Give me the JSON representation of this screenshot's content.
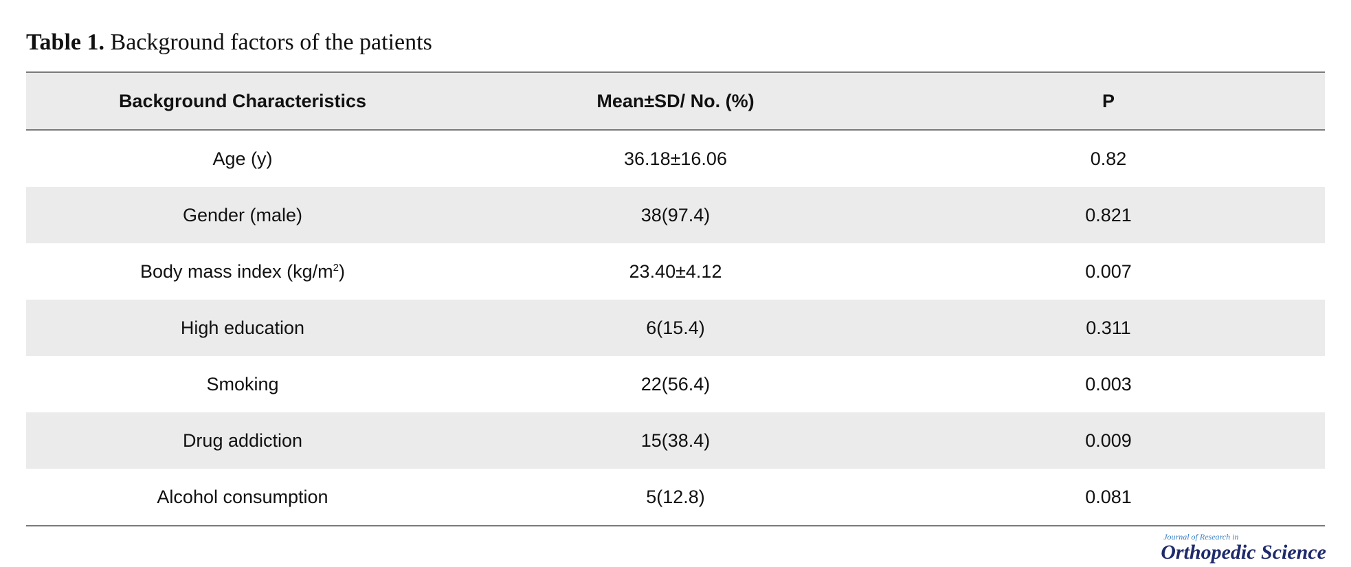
{
  "caption": {
    "label": "Table 1.",
    "text": "Background factors of the patients"
  },
  "table": {
    "headers": [
      "Background Characteristics",
      "Mean±SD/ No. (%)",
      "P"
    ],
    "rows": [
      {
        "characteristic": "Age (y)",
        "value": "36.18±16.06",
        "p": "0.82"
      },
      {
        "characteristic": "Gender (male)",
        "value": "38(97.4)",
        "p": "0.821"
      },
      {
        "characteristic": "Body mass index (kg/m",
        "characteristic_sup": "2",
        "characteristic_end": ")",
        "value": "23.40±4.12",
        "p": "0.007"
      },
      {
        "characteristic": "High education",
        "value": "6(15.4)",
        "p": "0.311"
      },
      {
        "characteristic": "Smoking",
        "value": "22(56.4)",
        "p": "0.003"
      },
      {
        "characteristic": "Drug addiction",
        "value": "15(38.4)",
        "p": "0.009"
      },
      {
        "characteristic": "Alcohol consumption",
        "value": "5(12.8)",
        "p": "0.081"
      }
    ]
  },
  "logo": {
    "line1": "Journal of Research in",
    "line2": "Orthopedic Science"
  }
}
